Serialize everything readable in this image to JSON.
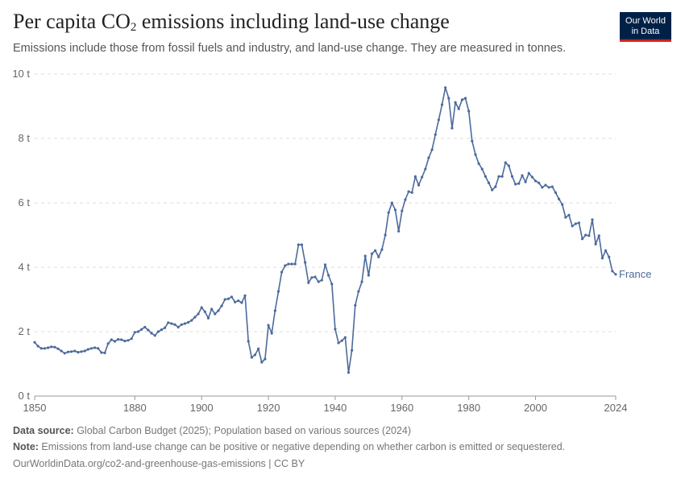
{
  "header": {
    "title_main": "Per capita CO",
    "title_sub": "2",
    "title_rest": " emissions including land-use change",
    "subtitle": "Emissions include those from fossil fuels and industry, and land-use change. They are measured in tonnes."
  },
  "logo": {
    "line1": "Our World",
    "line2": "in Data"
  },
  "footer": {
    "source_label": "Data source:",
    "source_text": " Global Carbon Budget (2025); Population based on various sources (2024)",
    "note_label": "Note:",
    "note_text": " Emissions from land-use change can be positive or negative depending on whether carbon is emitted or sequestered.",
    "url_text": "OurWorldinData.org/co2-and-greenhouse-gas-emissions | CC BY"
  },
  "colors": {
    "series": "#4c6a9c",
    "grid": "#dddddd",
    "logo_bg": "#002147",
    "logo_accent": "#ce261e"
  },
  "chart_data": {
    "type": "line",
    "x_ticks": [
      1850,
      1880,
      1900,
      1920,
      1940,
      1960,
      1980,
      2000,
      2024
    ],
    "y_ticks": [
      0,
      2,
      4,
      6,
      8,
      10
    ],
    "y_tick_labels": [
      "0 t",
      "2 t",
      "4 t",
      "6 t",
      "8 t",
      "10 t"
    ],
    "xlim": [
      1850,
      2024
    ],
    "ylim": [
      0,
      10
    ],
    "grid": "horizontal-dashed",
    "series": [
      {
        "name": "France",
        "x": [
          1850,
          1851,
          1852,
          1853,
          1854,
          1855,
          1856,
          1857,
          1858,
          1859,
          1860,
          1861,
          1862,
          1863,
          1864,
          1865,
          1866,
          1867,
          1868,
          1869,
          1870,
          1871,
          1872,
          1873,
          1874,
          1875,
          1876,
          1877,
          1878,
          1879,
          1880,
          1881,
          1882,
          1883,
          1884,
          1885,
          1886,
          1887,
          1888,
          1889,
          1890,
          1891,
          1892,
          1893,
          1894,
          1895,
          1896,
          1897,
          1898,
          1899,
          1900,
          1901,
          1902,
          1903,
          1904,
          1905,
          1906,
          1907,
          1908,
          1909,
          1910,
          1911,
          1912,
          1913,
          1914,
          1915,
          1916,
          1917,
          1918,
          1919,
          1920,
          1921,
          1922,
          1923,
          1924,
          1925,
          1926,
          1927,
          1928,
          1929,
          1930,
          1931,
          1932,
          1933,
          1934,
          1935,
          1936,
          1937,
          1938,
          1939,
          1940,
          1941,
          1942,
          1943,
          1944,
          1945,
          1946,
          1947,
          1948,
          1949,
          1950,
          1951,
          1952,
          1953,
          1954,
          1955,
          1956,
          1957,
          1958,
          1959,
          1960,
          1961,
          1962,
          1963,
          1964,
          1965,
          1966,
          1967,
          1968,
          1969,
          1970,
          1971,
          1972,
          1973,
          1974,
          1975,
          1976,
          1977,
          1978,
          1979,
          1980,
          1981,
          1982,
          1983,
          1984,
          1985,
          1986,
          1987,
          1988,
          1989,
          1990,
          1991,
          1992,
          1993,
          1994,
          1995,
          1996,
          1997,
          1998,
          1999,
          2000,
          2001,
          2002,
          2003,
          2004,
          2005,
          2006,
          2007,
          2008,
          2009,
          2010,
          2011,
          2012,
          2013,
          2014,
          2015,
          2016,
          2017,
          2018,
          2019,
          2020,
          2021,
          2022,
          2023,
          2024
        ],
        "y": [
          1.67,
          1.55,
          1.48,
          1.48,
          1.5,
          1.53,
          1.52,
          1.47,
          1.4,
          1.33,
          1.37,
          1.38,
          1.4,
          1.36,
          1.38,
          1.4,
          1.45,
          1.48,
          1.5,
          1.48,
          1.35,
          1.34,
          1.63,
          1.75,
          1.7,
          1.76,
          1.75,
          1.71,
          1.73,
          1.78,
          1.98,
          2.0,
          2.07,
          2.14,
          2.05,
          1.95,
          1.88,
          2.0,
          2.06,
          2.12,
          2.28,
          2.25,
          2.22,
          2.14,
          2.22,
          2.25,
          2.29,
          2.35,
          2.45,
          2.55,
          2.75,
          2.62,
          2.42,
          2.7,
          2.55,
          2.65,
          2.8,
          3.0,
          3.02,
          3.08,
          2.92,
          2.96,
          2.9,
          3.12,
          1.7,
          1.2,
          1.28,
          1.47,
          1.05,
          1.15,
          2.2,
          1.95,
          2.65,
          3.25,
          3.85,
          4.05,
          4.1,
          4.1,
          4.1,
          4.7,
          4.7,
          4.15,
          3.52,
          3.68,
          3.7,
          3.55,
          3.6,
          4.08,
          3.75,
          3.48,
          2.08,
          1.65,
          1.72,
          1.82,
          0.73,
          1.42,
          2.82,
          3.25,
          3.55,
          4.35,
          3.75,
          4.42,
          4.52,
          4.32,
          4.55,
          5.0,
          5.7,
          6.0,
          5.78,
          5.12,
          5.75,
          6.1,
          6.35,
          6.32,
          6.82,
          6.55,
          6.8,
          7.05,
          7.4,
          7.65,
          8.12,
          8.58,
          9.05,
          9.58,
          9.25,
          8.32,
          9.12,
          8.92,
          9.2,
          9.25,
          8.85,
          7.92,
          7.5,
          7.22,
          7.05,
          6.82,
          6.62,
          6.4,
          6.5,
          6.82,
          6.82,
          7.25,
          7.15,
          6.82,
          6.58,
          6.6,
          6.85,
          6.65,
          6.92,
          6.8,
          6.68,
          6.62,
          6.48,
          6.55,
          6.48,
          6.5,
          6.32,
          6.12,
          5.95,
          5.55,
          5.62,
          5.28,
          5.35,
          5.38,
          4.88,
          5.0,
          4.98,
          5.48,
          4.72,
          4.98,
          4.28,
          4.52,
          4.32,
          3.88,
          3.78
        ]
      }
    ]
  }
}
